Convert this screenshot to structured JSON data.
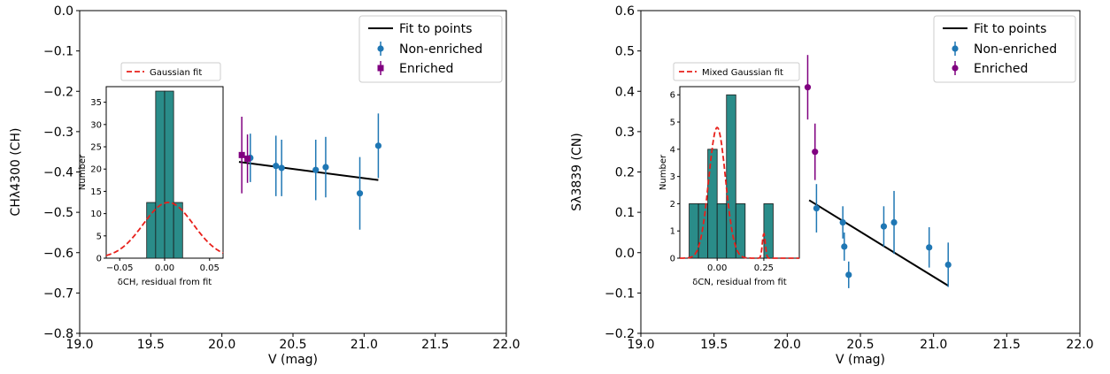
{
  "chart_data": [
    {
      "type": "scatter",
      "xlabel": "V (mag)",
      "ylabel": "CHλ4300 (CH)",
      "xlim": [
        19.0,
        22.0
      ],
      "ylim": [
        -0.8,
        0.0
      ],
      "xticks": [
        "19.0",
        "19.5",
        "20.0",
        "20.5",
        "21.0",
        "21.5",
        "22.0"
      ],
      "yticks": [
        "−0.8",
        "−0.7",
        "−0.6",
        "−0.5",
        "−0.4",
        "−0.3",
        "−0.2",
        "−0.1",
        "0.0"
      ],
      "legend": {
        "position": "top-right",
        "fit_label": "Fit to points",
        "nonenriched_label": "Non-enriched",
        "enriched_label": "Enriched"
      },
      "colors": {
        "fit": "#000000",
        "nonenriched": "#1f77b4",
        "enriched": "#800080"
      },
      "enriched_marker": "square",
      "fit_line": [
        [
          20.12,
          -0.375
        ],
        [
          21.1,
          -0.42
        ]
      ],
      "nonenriched": [
        {
          "x": 20.2,
          "y": -0.365,
          "err": 0.06
        },
        {
          "x": 20.38,
          "y": -0.385,
          "err": 0.075
        },
        {
          "x": 20.42,
          "y": -0.39,
          "err": 0.07
        },
        {
          "x": 20.66,
          "y": -0.395,
          "err": 0.075
        },
        {
          "x": 20.73,
          "y": -0.388,
          "err": 0.075
        },
        {
          "x": 20.97,
          "y": -0.453,
          "err": 0.09
        },
        {
          "x": 21.1,
          "y": -0.335,
          "err": 0.08
        }
      ],
      "enriched": [
        {
          "x": 20.14,
          "y": -0.358,
          "err": 0.095
        },
        {
          "x": 20.18,
          "y": -0.367,
          "err": 0.06
        }
      ],
      "inset": {
        "type": "histogram",
        "xlabel": "δCH, residual from fit",
        "ylabel": "Number",
        "xlim": [
          -0.065,
          0.065
        ],
        "ylim": [
          0,
          38.5
        ],
        "xticks": [
          "−0.05",
          "0.00",
          "0.05"
        ],
        "yticks": [
          "0",
          "5",
          "10",
          "15",
          "20",
          "25",
          "30",
          "35"
        ],
        "bins": [
          {
            "x0": -0.02,
            "x1": -0.01,
            "count": 12.5
          },
          {
            "x0": -0.01,
            "x1": 0.0,
            "count": 37.5
          },
          {
            "x0": 0.0,
            "x1": 0.01,
            "count": 37.5
          },
          {
            "x0": 0.01,
            "x1": 0.02,
            "count": 12.5
          }
        ],
        "bar_color": "#2a8c89",
        "fit_label": "Gaussian fit",
        "fit_color": "#e8201b",
        "gaussian": {
          "amp": 12.5,
          "mu": 0.004,
          "sigma": 0.028
        }
      }
    },
    {
      "type": "scatter",
      "xlabel": "V (mag)",
      "ylabel": "Sλ3839 (CN)",
      "xlim": [
        19.0,
        22.0
      ],
      "ylim": [
        -0.2,
        0.6
      ],
      "xticks": [
        "19.0",
        "19.5",
        "20.0",
        "20.5",
        "21.0",
        "21.5",
        "22.0"
      ],
      "yticks": [
        "−0.2",
        "−0.1",
        "0.0",
        "0.1",
        "0.2",
        "0.3",
        "0.4",
        "0.5",
        "0.6"
      ],
      "legend": {
        "position": "top-right",
        "fit_label": "Fit to points",
        "nonenriched_label": "Non-enriched",
        "enriched_label": "Enriched"
      },
      "colors": {
        "fit": "#000000",
        "nonenriched": "#1f77b4",
        "enriched": "#800080"
      },
      "enriched_marker": "circle",
      "fit_line": [
        [
          20.15,
          0.13
        ],
        [
          21.1,
          -0.082
        ]
      ],
      "nonenriched": [
        {
          "x": 20.2,
          "y": 0.11,
          "err": 0.06
        },
        {
          "x": 20.38,
          "y": 0.075,
          "err": 0.04
        },
        {
          "x": 20.39,
          "y": 0.015,
          "err": 0.035
        },
        {
          "x": 20.42,
          "y": -0.055,
          "err": 0.033
        },
        {
          "x": 20.66,
          "y": 0.065,
          "err": 0.05
        },
        {
          "x": 20.73,
          "y": 0.075,
          "err": 0.078
        },
        {
          "x": 20.97,
          "y": 0.013,
          "err": 0.05
        },
        {
          "x": 21.1,
          "y": -0.03,
          "err": 0.055
        }
      ],
      "enriched": [
        {
          "x": 20.14,
          "y": 0.41,
          "err": 0.08
        },
        {
          "x": 20.19,
          "y": 0.25,
          "err": 0.07
        }
      ],
      "inset": {
        "type": "histogram",
        "xlabel": "δCN, residual from fit",
        "ylabel": "Number",
        "xlim": [
          -0.2,
          0.44
        ],
        "ylim": [
          0,
          6.3
        ],
        "xticks": [
          "0.00",
          "0.25"
        ],
        "yticks": [
          "0",
          "1",
          "2",
          "3",
          "4",
          "5",
          "6"
        ],
        "bins": [
          {
            "x0": -0.15,
            "x1": -0.1,
            "count": 2
          },
          {
            "x0": -0.1,
            "x1": -0.05,
            "count": 2
          },
          {
            "x0": -0.05,
            "x1": 0.0,
            "count": 4
          },
          {
            "x0": 0.0,
            "x1": 0.05,
            "count": 2
          },
          {
            "x0": 0.05,
            "x1": 0.1,
            "count": 6
          },
          {
            "x0": 0.1,
            "x1": 0.15,
            "count": 2
          },
          {
            "x0": 0.25,
            "x1": 0.3,
            "count": 2
          }
        ],
        "bar_color": "#2a8c89",
        "fit_label": "Mixed Gaussian fit",
        "fit_color": "#e8201b",
        "gaussian": {
          "amp": 4.8,
          "mu": 0.0,
          "sigma": 0.045,
          "amp2": 0.9,
          "mu2": 0.25,
          "sigma2": 0.008
        }
      }
    }
  ]
}
